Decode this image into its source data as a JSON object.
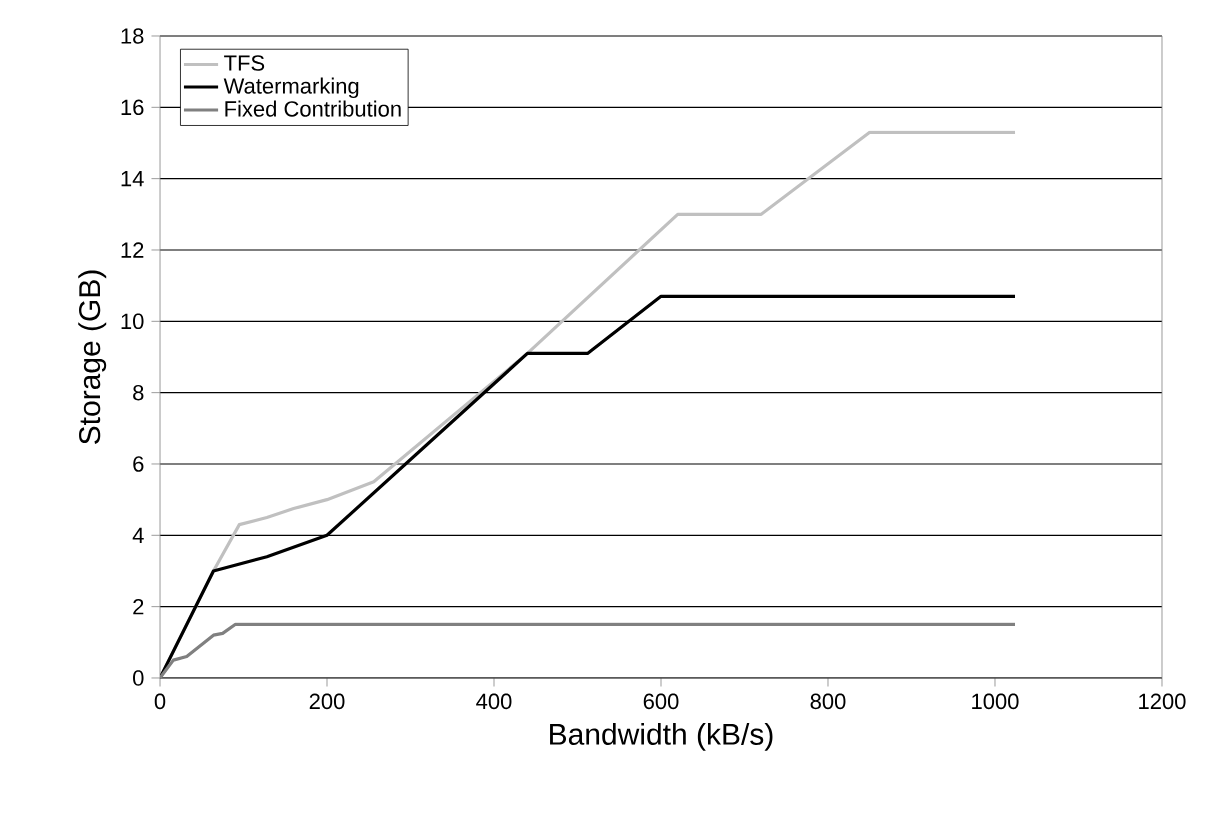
{
  "chart_data": {
    "type": "line",
    "xlabel": "Bandwidth (kB/s)",
    "ylabel": "Storage (GB)",
    "xlim": [
      0,
      1200
    ],
    "xticks": [
      0,
      200,
      400,
      600,
      800,
      1000,
      1200
    ],
    "ylim": [
      0,
      18
    ],
    "yticks": [
      0,
      2,
      4,
      6,
      8,
      10,
      12,
      14,
      16,
      18
    ],
    "grid": "y",
    "legend": "top left",
    "marker": "none",
    "line_style": "solid",
    "series": [
      {
        "name": "TFS",
        "color": "#c0c0c0",
        "x": [
          0,
          64,
          95,
          128,
          160,
          200,
          256,
          440,
          620,
          720,
          850,
          1024
        ],
        "values": [
          0,
          3.0,
          4.3,
          4.5,
          4.75,
          5.0,
          5.5,
          9.1,
          13.0,
          13.0,
          15.3,
          15.3
        ]
      },
      {
        "name": "Watermarking",
        "color": "#000000",
        "x": [
          0,
          64,
          128,
          200,
          440,
          512,
          600,
          1024
        ],
        "values": [
          0,
          3.0,
          3.4,
          4.0,
          9.1,
          9.1,
          10.7,
          10.7
        ]
      },
      {
        "name": "Fixed Contribution",
        "color": "#808080",
        "x": [
          0,
          16,
          32,
          64,
          75,
          90,
          1024
        ],
        "values": [
          0,
          0.5,
          0.6,
          1.2,
          1.25,
          1.5,
          1.5
        ]
      }
    ]
  }
}
